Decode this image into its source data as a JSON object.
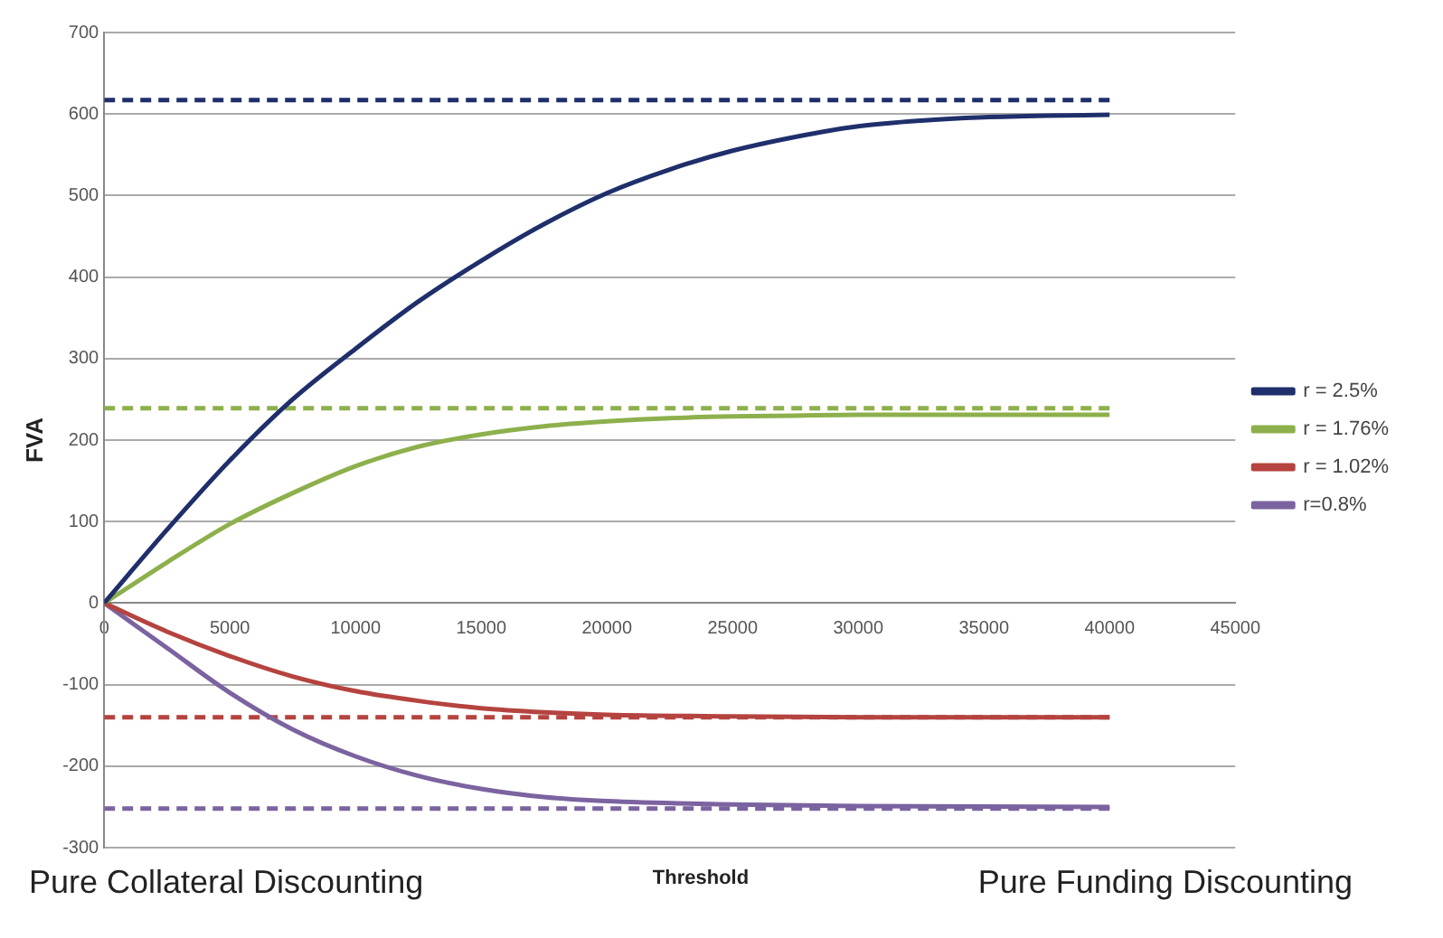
{
  "chart_data": {
    "type": "line",
    "xlabel": "Threshold",
    "ylabel": "FVA",
    "xlim": [
      0,
      45000
    ],
    "xticks": [
      0,
      5000,
      10000,
      15000,
      20000,
      25000,
      30000,
      35000,
      40000,
      45000
    ],
    "ylim": [
      -300,
      700
    ],
    "yticks": [
      -300,
      -200,
      -100,
      0,
      100,
      200,
      300,
      400,
      500,
      600,
      700
    ],
    "grid": "y",
    "legend": "right",
    "marker": "none",
    "line_style": "solid",
    "annotations": [
      "Pure Collateral Discounting",
      "Pure Funding Discounting"
    ],
    "series": [
      {
        "name": "r = 2.5%",
        "color": "#1f2f6b",
        "x": [
          0,
          2500,
          5000,
          7500,
          10000,
          12500,
          15000,
          17500,
          20000,
          22500,
          25000,
          27500,
          30000,
          32500,
          35000,
          37500,
          40000
        ],
        "values": [
          0,
          90,
          175,
          250,
          312,
          370,
          420,
          465,
          503,
          532,
          555,
          572,
          585,
          592,
          596,
          598,
          599
        ]
      },
      {
        "name": "r = 1.76%",
        "color": "#8db04c",
        "x": [
          0,
          2500,
          5000,
          7500,
          10000,
          12500,
          15000,
          17500,
          20000,
          22500,
          25000,
          27500,
          30000,
          35000,
          40000
        ],
        "values": [
          0,
          50,
          97,
          135,
          168,
          192,
          207,
          217,
          223,
          227,
          229,
          230,
          231,
          231,
          231
        ]
      },
      {
        "name": "r = 1.02%",
        "color": "#b5433f",
        "x": [
          0,
          2500,
          5000,
          7500,
          10000,
          12500,
          15000,
          17500,
          20000,
          25000,
          30000,
          40000
        ],
        "values": [
          0,
          -35,
          -65,
          -90,
          -108,
          -120,
          -129,
          -134,
          -137,
          -139,
          -140,
          -140
        ]
      },
      {
        "name": "r=0.8%",
        "color": "#7b63a0",
        "x": [
          0,
          2500,
          5000,
          7500,
          10000,
          12500,
          15000,
          17500,
          20000,
          25000,
          30000,
          40000
        ],
        "values": [
          0,
          -55,
          -110,
          -155,
          -188,
          -212,
          -228,
          -238,
          -243,
          -247,
          -249,
          -250
        ]
      },
      {
        "color": "#1f2f6b",
        "line_style": "dashed",
        "x": [
          0,
          40000
        ],
        "values": [
          617,
          617
        ]
      },
      {
        "color": "#8db04c",
        "line_style": "dashed",
        "x": [
          0,
          40000
        ],
        "values": [
          239,
          239
        ]
      },
      {
        "color": "#b5433f",
        "line_style": "dashed",
        "x": [
          0,
          40000
        ],
        "values": [
          -140,
          -140
        ]
      },
      {
        "color": "#7b63a0",
        "line_style": "dashed",
        "x": [
          0,
          40000
        ],
        "values": [
          -252,
          -252
        ]
      }
    ]
  }
}
